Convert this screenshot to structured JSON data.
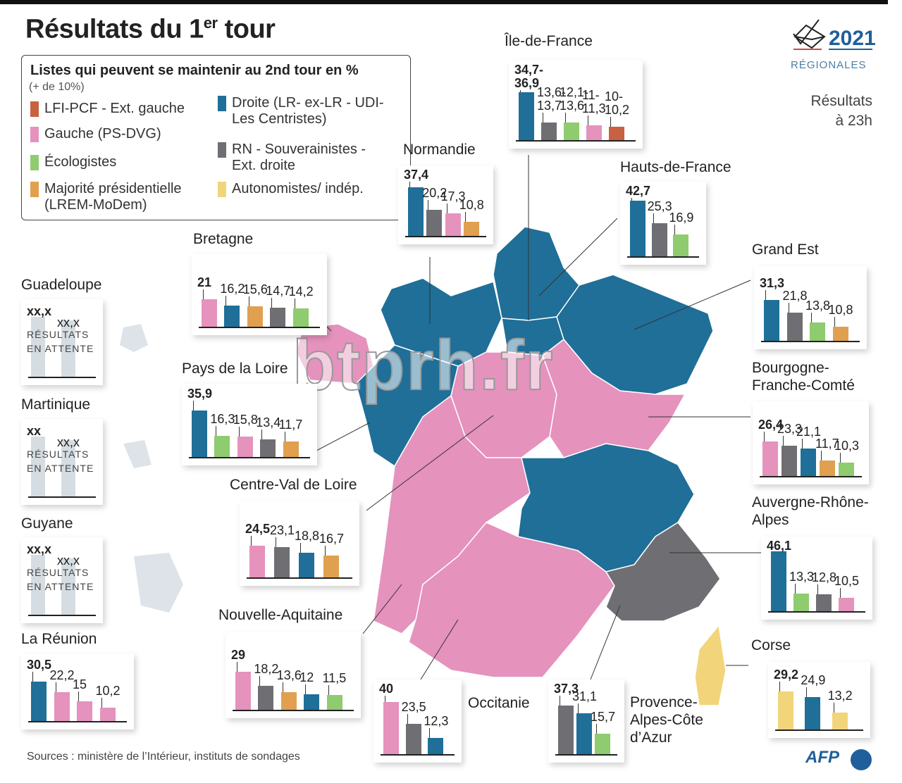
{
  "title": {
    "main": "Résultats du 1",
    "sup": "er",
    "rest": " tour"
  },
  "logo": {
    "year": "2021",
    "label": "Régionales"
  },
  "time_note": {
    "line1": "Résultats",
    "line2": "à 23h"
  },
  "legend": {
    "title": "Listes qui peuvent se maintenir au 2nd tour en %",
    "subtitle": "(+ de 10%)",
    "items": [
      {
        "key": "lfi",
        "label": "LFI-PCF - Ext. gauche",
        "color": "#c8613f"
      },
      {
        "key": "gauche",
        "label": "Gauche (PS-DVG)",
        "color": "#e592bd"
      },
      {
        "key": "eco",
        "label": "Écologistes",
        "color": "#8fcb6f"
      },
      {
        "key": "maj",
        "label": "Majorité présidentielle (LREM-MoDem)",
        "color": "#e0a050"
      },
      {
        "key": "droite",
        "label": "Droite (LR- ex-LR - UDI- Les Centristes)",
        "color": "#1f6f98"
      },
      {
        "key": "rn",
        "label": "RN - Souverainistes - Ext. droite",
        "color": "#6f6e72"
      },
      {
        "key": "auto",
        "label": "Autonomistes/ indép.",
        "color": "#f2d47a"
      }
    ]
  },
  "chart_data": {
    "type": "bar",
    "unit": "%",
    "regions": [
      {
        "name": "Île-de-France",
        "bars": [
          {
            "party": "droite",
            "label": "34,7-36,9"
          },
          {
            "party": "rn",
            "label": "13,6-13,7"
          },
          {
            "party": "eco",
            "label": "12,1-13,6"
          },
          {
            "party": "gauche",
            "label": "11-11,3"
          },
          {
            "party": "lfi",
            "label": "10-10,2"
          }
        ]
      },
      {
        "name": "Normandie",
        "bars": [
          {
            "party": "droite",
            "label": "37,4"
          },
          {
            "party": "rn",
            "label": "20,2"
          },
          {
            "party": "gauche",
            "label": "17,3"
          },
          {
            "party": "maj",
            "label": "10,8"
          }
        ]
      },
      {
        "name": "Hauts-de-France",
        "bars": [
          {
            "party": "droite",
            "label": "42,7"
          },
          {
            "party": "rn",
            "label": "25,3"
          },
          {
            "party": "eco",
            "label": "16,9"
          }
        ]
      },
      {
        "name": "Grand Est",
        "bars": [
          {
            "party": "droite",
            "label": "31,3"
          },
          {
            "party": "rn",
            "label": "21,8"
          },
          {
            "party": "eco",
            "label": "13,8"
          },
          {
            "party": "maj",
            "label": "10,8"
          }
        ]
      },
      {
        "name": "Bretagne",
        "bars": [
          {
            "party": "gauche",
            "label": "21"
          },
          {
            "party": "droite",
            "label": "16,2"
          },
          {
            "party": "maj",
            "label": "15,6"
          },
          {
            "party": "rn",
            "label": "14,7"
          },
          {
            "party": "eco",
            "label": "14,2"
          }
        ]
      },
      {
        "name": "Pays de la Loire",
        "bars": [
          {
            "party": "droite",
            "label": "35,9"
          },
          {
            "party": "eco",
            "label": "16,3"
          },
          {
            "party": "gauche",
            "label": "15,8"
          },
          {
            "party": "rn",
            "label": "13,4"
          },
          {
            "party": "maj",
            "label": "11,7"
          }
        ]
      },
      {
        "name": "Centre-Val de Loire",
        "bars": [
          {
            "party": "gauche",
            "label": "24,5"
          },
          {
            "party": "rn",
            "label": "23,1"
          },
          {
            "party": "droite",
            "label": "18,8"
          },
          {
            "party": "maj",
            "label": "16,7"
          }
        ]
      },
      {
        "name": "Bourgogne-Franche-Comté",
        "bars": [
          {
            "party": "gauche",
            "label": "26,4"
          },
          {
            "party": "rn",
            "label": "23,3"
          },
          {
            "party": "droite",
            "label": "21,1"
          },
          {
            "party": "maj",
            "label": "11,7"
          },
          {
            "party": "eco",
            "label": "10,3"
          }
        ]
      },
      {
        "name": "Auvergne-Rhône-Alpes",
        "bars": [
          {
            "party": "droite",
            "label": "46,1"
          },
          {
            "party": "eco",
            "label": "13,3"
          },
          {
            "party": "rn",
            "label": "12,8"
          },
          {
            "party": "gauche",
            "label": "10,5"
          }
        ]
      },
      {
        "name": "Nouvelle-Aquitaine",
        "bars": [
          {
            "party": "gauche",
            "label": "29"
          },
          {
            "party": "rn",
            "label": "18,2"
          },
          {
            "party": "maj",
            "label": "13,6"
          },
          {
            "party": "droite",
            "label": "12"
          },
          {
            "party": "eco",
            "label": "11,5"
          }
        ]
      },
      {
        "name": "Occitanie",
        "bars": [
          {
            "party": "gauche",
            "label": "40"
          },
          {
            "party": "rn",
            "label": "23,5"
          },
          {
            "party": "droite",
            "label": "12,3"
          }
        ]
      },
      {
        "name": "Provence-Alpes-Côte d’Azur",
        "bars": [
          {
            "party": "rn",
            "label": "37,3"
          },
          {
            "party": "droite",
            "label": "31,1"
          },
          {
            "party": "eco",
            "label": "15,7"
          }
        ]
      },
      {
        "name": "Corse",
        "bars": [
          {
            "party": "auto",
            "label": "29,2"
          },
          {
            "party": "droite",
            "label": "24,9"
          },
          {
            "party": "auto",
            "label": "13,2"
          }
        ]
      },
      {
        "name": "La Réunion",
        "bars": [
          {
            "party": "droite",
            "label": "30,5"
          },
          {
            "party": "gauche",
            "label": "22,2"
          },
          {
            "party": "gauche",
            "label": "15"
          },
          {
            "party": "gauche",
            "label": "10,2"
          }
        ]
      },
      {
        "name": "Guadeloupe",
        "pending": "RÉSULTATS EN ATTENTE",
        "bars": [
          {
            "label": "xx,x"
          },
          {
            "label": "xx,x"
          }
        ]
      },
      {
        "name": "Martinique",
        "pending": "RÉSULTATS EN ATTENTE",
        "bars": [
          {
            "label": "xx"
          },
          {
            "label": "xx,x"
          }
        ]
      },
      {
        "name": "Guyane",
        "pending": "RÉSULTATS EN ATTENTE",
        "bars": [
          {
            "label": "xx,x"
          },
          {
            "label": "xx,x"
          }
        ]
      }
    ],
    "map_winner": {
      "Bretagne": "gauche",
      "Normandie": "droite",
      "Hauts-de-France": "droite",
      "Île-de-France": "droite",
      "Grand Est": "droite",
      "Pays de la Loire": "droite",
      "Centre-Val de Loire": "gauche",
      "Bourgogne-Franche-Comté": "gauche",
      "Nouvelle-Aquitaine": "gauche",
      "Auvergne-Rhône-Alpes": "droite",
      "Occitanie": "gauche",
      "Provence-Alpes-Côte d’Azur": "rn",
      "Corse": "auto"
    }
  },
  "watermark": "btprh.fr",
  "sources": "Sources : ministère de l’Intérieur, instituts de sondages",
  "agency": "AFP"
}
